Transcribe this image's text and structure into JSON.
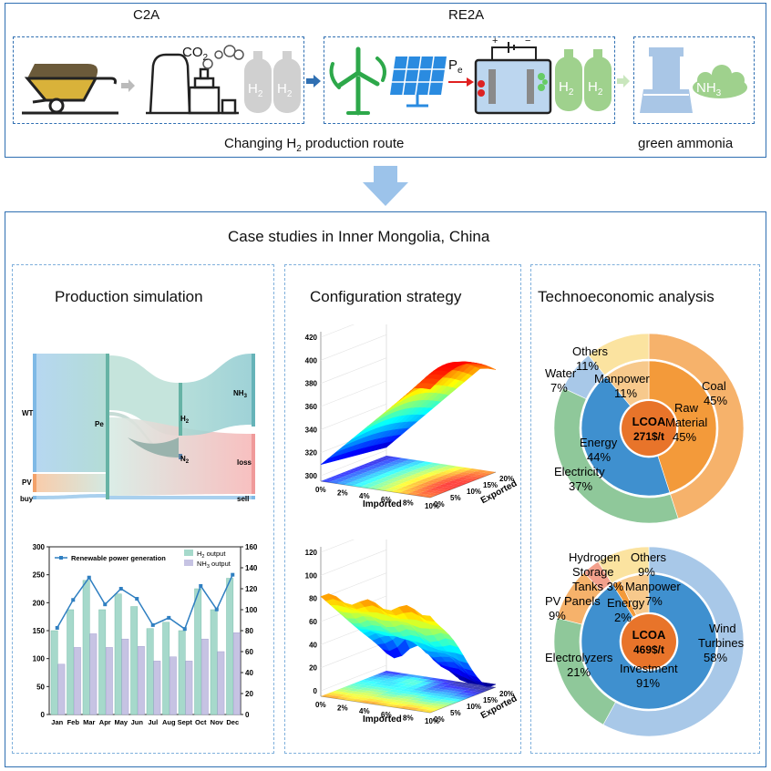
{
  "top": {
    "c2a_label": "C2A",
    "re2a_label": "RE2A",
    "co2_label": "CO",
    "co2_sub": "2",
    "h2_label": "H",
    "h2_sub": "2",
    "pe_label": "P",
    "pe_sub": "e",
    "nh3_label": "NH",
    "nh3_sub": "3",
    "changing_route_a": "Changing H",
    "changing_route_sub": "2",
    "changing_route_b": " production route",
    "green_ammonia": "green ammonia"
  },
  "case_title": "Case studies in Inner Mongolia, China",
  "panels": {
    "production": "Production simulation",
    "configuration": "Configuration strategy",
    "technoeconomic": "Technoeconomic analysis"
  },
  "sankey": {
    "nodes": {
      "wt": "WT",
      "pv": "PV",
      "buy": "buy",
      "pe": "Pe",
      "h2": "H",
      "h2_sub": "2",
      "n2": "N",
      "n2_sub": "2",
      "nh3": "NH",
      "nh3_sub": "3",
      "loss": "loss",
      "sell": "sell"
    }
  },
  "chart_data": [
    {
      "type": "bar",
      "categories": [
        "Jan",
        "Feb",
        "Mar",
        "Apr",
        "May",
        "Jun",
        "Jul",
        "Aug",
        "Sept",
        "Oct",
        "Nov",
        "Dec"
      ],
      "series": [
        {
          "name": "Renewable power generation",
          "kind": "line",
          "axis": "left",
          "values": [
            155,
            205,
            245,
            197,
            225,
            207,
            160,
            173,
            153,
            230,
            188,
            250
          ]
        },
        {
          "name": "H2 output",
          "kind": "bar",
          "axis": "right",
          "values": [
            80,
            100,
            128,
            100,
            115,
            103,
            82,
            88,
            80,
            120,
            100,
            130
          ]
        },
        {
          "name": "NH3 output",
          "kind": "bar",
          "axis": "right",
          "values": [
            48,
            64,
            77,
            64,
            72,
            65,
            51,
            55,
            51,
            72,
            60,
            78
          ]
        }
      ],
      "legend_labels": {
        "line": "Renewable power generation",
        "h2": "H",
        "h2_sub": "2",
        "h2_rest": " output",
        "nh3": "NH",
        "nh3_sub": "3",
        "nh3_rest": " output"
      },
      "left_ticks": [
        "0",
        "50",
        "100",
        "150",
        "200",
        "250",
        "300"
      ],
      "right_ticks": [
        "0",
        "20",
        "40",
        "60",
        "80",
        "100",
        "120",
        "140",
        "160"
      ],
      "ylim_left": [
        0,
        300
      ],
      "ylim_right": [
        0,
        160
      ]
    },
    {
      "type": "area",
      "z_ticks": [
        "300",
        "320",
        "340",
        "360",
        "380",
        "400",
        "420"
      ],
      "x_ticks": [
        "0%",
        "2%",
        "4%",
        "6%",
        "8%",
        "10%"
      ],
      "y_ticks": [
        "0%",
        "5%",
        "10%",
        "15%",
        "20%"
      ],
      "xlabel": "Imported",
      "ylabel": "Exported"
    },
    {
      "type": "area",
      "z_ticks": [
        "0",
        "20",
        "40",
        "60",
        "80",
        "100",
        "120"
      ],
      "x_ticks": [
        "0%",
        "2%",
        "4%",
        "6%",
        "8%",
        "10%"
      ],
      "y_ticks": [
        "0%",
        "5%",
        "10%",
        "15%",
        "20%"
      ],
      "xlabel": "Imported",
      "ylabel": "Exported"
    },
    {
      "type": "pie",
      "center_label": "LCOA",
      "center_value": "271$/t",
      "outer": [
        {
          "label": "Coal",
          "value": 45,
          "text": "45%",
          "color": "#f6b26b"
        },
        {
          "label": "Electricity",
          "value": 37,
          "text": "37%",
          "color": "#8fc89a"
        },
        {
          "label": "Water",
          "value": 7,
          "text": "7%",
          "color": "#a8c8e8"
        },
        {
          "label": "Others",
          "value": 11,
          "text": "11%",
          "color": "#fbe3a0"
        }
      ],
      "inner": [
        {
          "label": "Raw Material",
          "value": 45,
          "text": "45%",
          "color": "#f39a3a"
        },
        {
          "label": "Energy",
          "value": 44,
          "text": "44%",
          "color": "#3f90cf"
        },
        {
          "label": "Manpower",
          "value": 11,
          "text": "11%",
          "color": "#f7c98c"
        }
      ]
    },
    {
      "type": "pie",
      "center_label": "LCOA",
      "center_value": "469$/t",
      "outer": [
        {
          "label": "Wind Turbines",
          "value": 58,
          "text": "58%",
          "color": "#a8c8e8"
        },
        {
          "label": "Electrolyzers",
          "value": 21,
          "text": "21%",
          "color": "#8fc89a"
        },
        {
          "label": "PV Panels",
          "value": 9,
          "text": "9%",
          "color": "#f6b26b"
        },
        {
          "label": "Hydrogen Storage Tanks",
          "value": 3,
          "text": "3%",
          "color": "#f3a08c"
        },
        {
          "label": "Others",
          "value": 9,
          "text": "9%",
          "color": "#fbe3a0"
        }
      ],
      "inner": [
        {
          "label": "Investment",
          "value": 91,
          "text": "91%",
          "color": "#3f90cf"
        },
        {
          "label": "Energy",
          "value": 2,
          "text": "2%",
          "color": "#f39a3a"
        },
        {
          "label": "Manpower",
          "value": 7,
          "text": "7%",
          "color": "#f7c98c"
        }
      ]
    }
  ],
  "colors": {
    "frame": "#2f6fb2",
    "arrow": "#9cc3ea",
    "pie_center": "#e8742a",
    "turbine": "#2da84a",
    "panel": "#2a8be0"
  },
  "pie_labels": {
    "p1": {
      "others": "Others",
      "others_v": "11%",
      "water": "Water",
      "water_v": "7%",
      "manpower": "Manpower",
      "manpower_v": "11%",
      "coal": "Coal",
      "coal_v": "45%",
      "raw1": "Raw",
      "raw2": "Material",
      "raw_v": "45%",
      "energy": "Energy",
      "energy_v": "44%",
      "elec": "Electricity",
      "elec_v": "37%"
    },
    "p2": {
      "hyd1": "Hydrogen",
      "hyd2": "Storage",
      "tanks": "Tanks 3%",
      "others": "Others",
      "others_v": "9%",
      "manpower": "Manpower",
      "manpower_v": "7%",
      "energy": "Energy",
      "energy_v": "2%",
      "pv1": "PV Panels",
      "pv_v": "9%",
      "wind1": "Wind",
      "wind2": "Turbines",
      "wind_v": "58%",
      "electro": "Electrolyzers",
      "electro_v": "21%",
      "invest": "Investment",
      "invest_v": "91%"
    }
  }
}
